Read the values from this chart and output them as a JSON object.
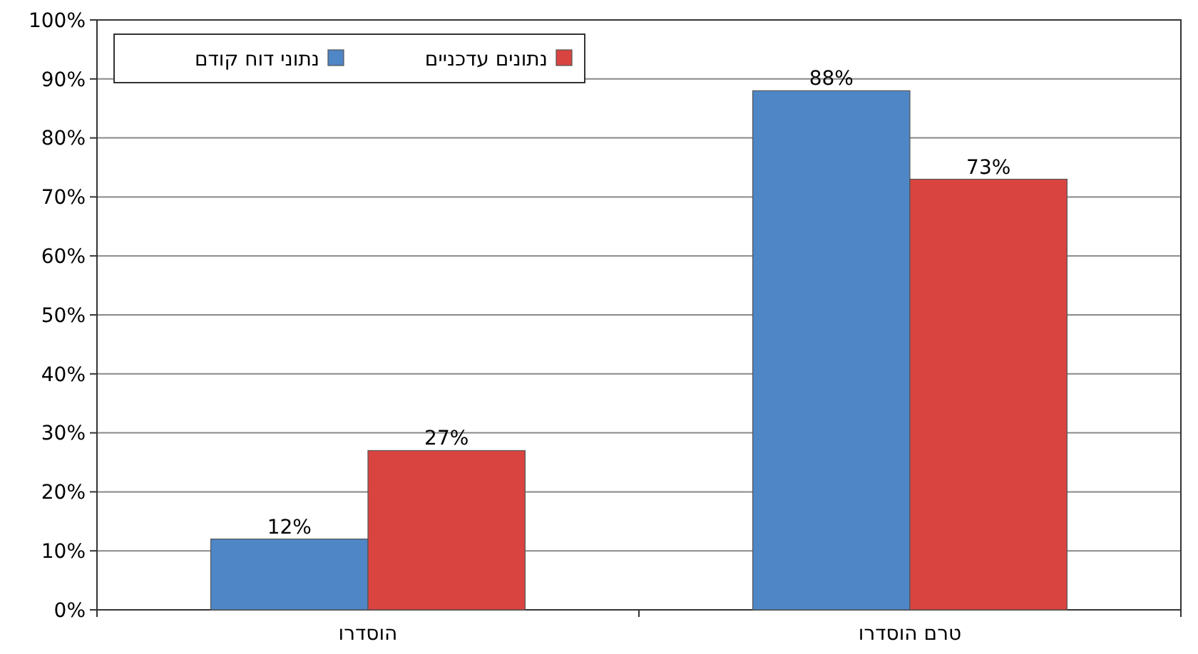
{
  "chart_data": {
    "type": "bar",
    "categories": [
      "הוסדרו",
      "טרם הוסדרו"
    ],
    "series": [
      {
        "name": "נתוני דוח קודם",
        "color": "#4f86c6",
        "values": [
          12,
          88
        ],
        "value_labels": [
          "12%",
          "88%"
        ]
      },
      {
        "name": "נתונים עדכניים",
        "color": "#d94441",
        "values": [
          27,
          73
        ],
        "value_labels": [
          "27%",
          "73%"
        ]
      }
    ],
    "ylim": [
      0,
      100
    ],
    "yticks": [
      {
        "value": 0,
        "label": "0%"
      },
      {
        "value": 10,
        "label": "10%"
      },
      {
        "value": 20,
        "label": "20%"
      },
      {
        "value": 30,
        "label": "30%"
      },
      {
        "value": 40,
        "label": "40%"
      },
      {
        "value": 50,
        "label": "50%"
      },
      {
        "value": 60,
        "label": "60%"
      },
      {
        "value": 70,
        "label": "70%"
      },
      {
        "value": 80,
        "label": "80%"
      },
      {
        "value": 90,
        "label": "90%"
      },
      {
        "value": 100,
        "label": "100%"
      }
    ],
    "grid": "y",
    "legend": "top left"
  }
}
